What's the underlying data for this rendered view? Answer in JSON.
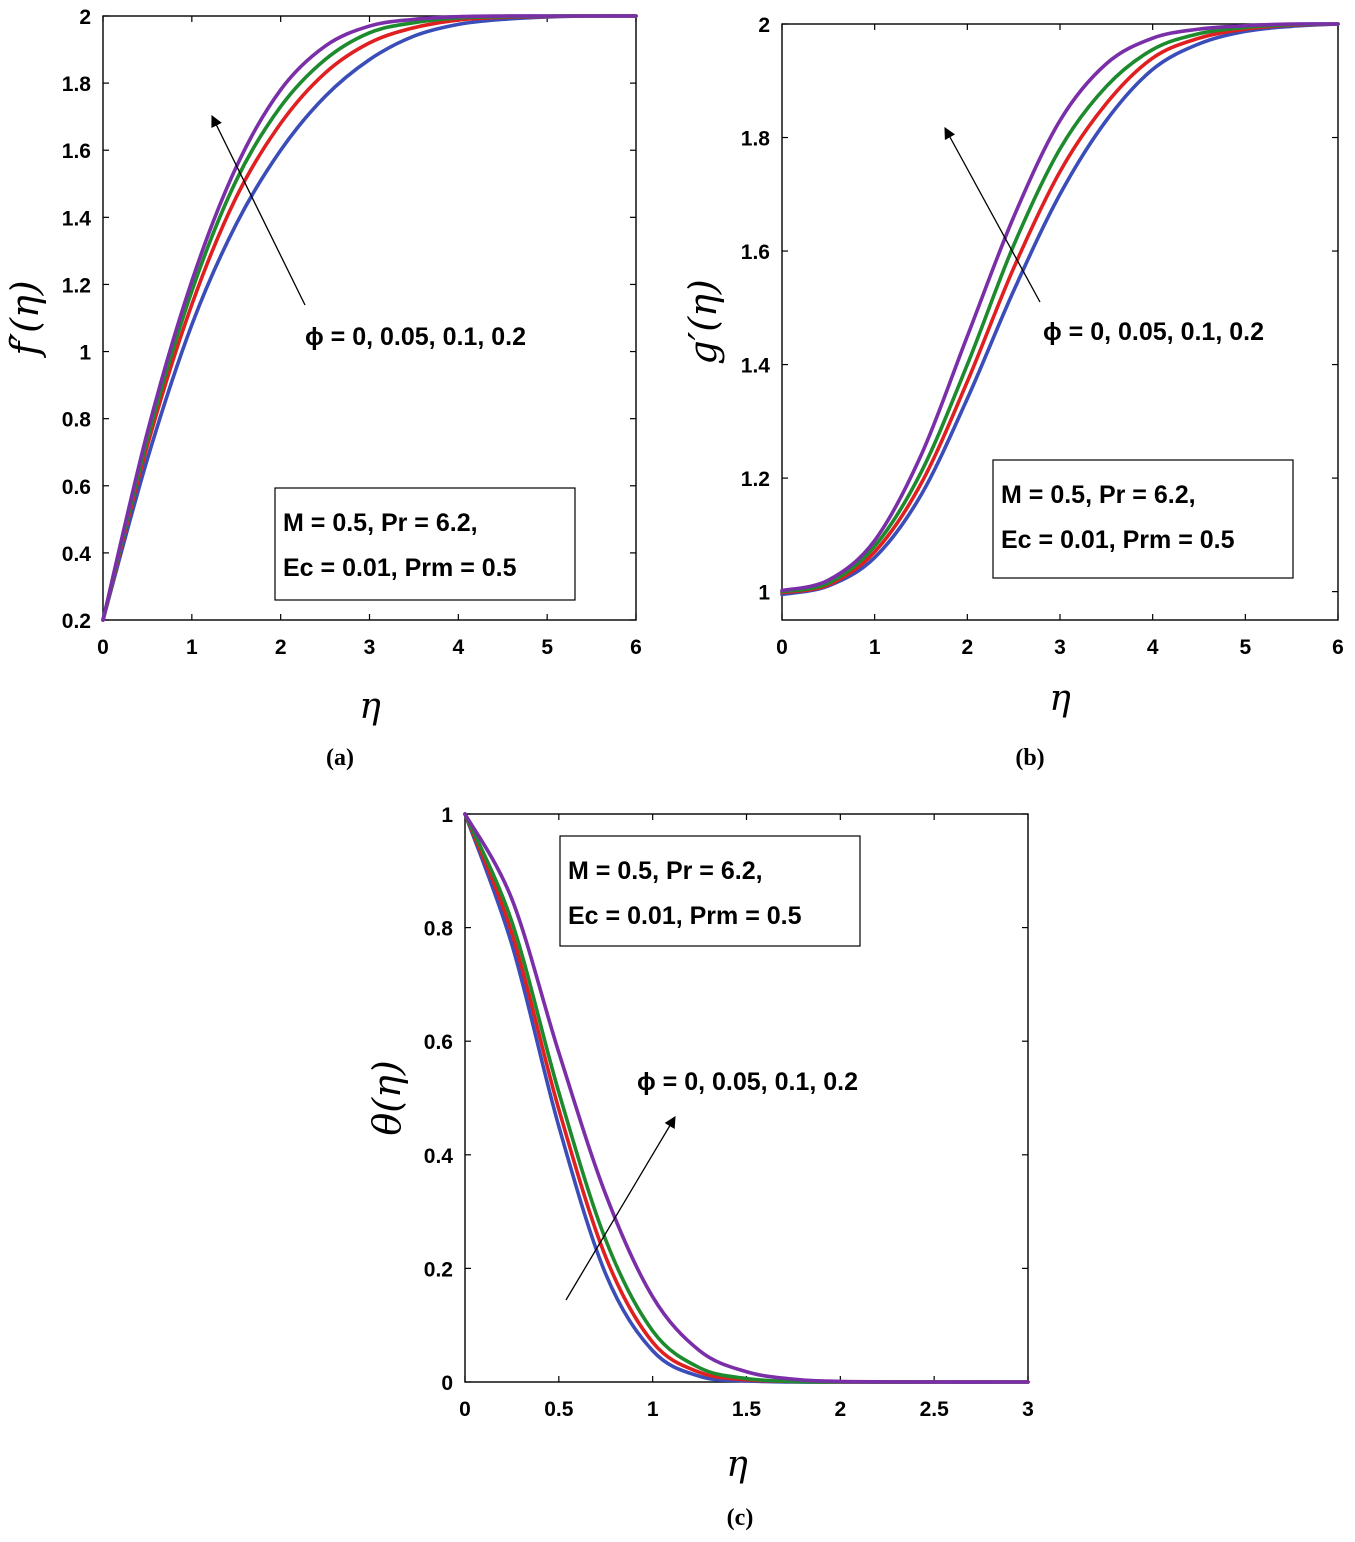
{
  "chart_data": [
    {
      "type": "line",
      "panel": "a",
      "caption": "(a)",
      "ylabel": "f′(η)",
      "xlabel": "η",
      "xlim": [
        0,
        6
      ],
      "ylim": [
        0.2,
        2
      ],
      "xticks": [
        "0",
        "1",
        "2",
        "3",
        "4",
        "5",
        "6"
      ],
      "yticks": [
        "0.2",
        "0.4",
        "0.6",
        "0.8",
        "1",
        "1.2",
        "1.4",
        "1.6",
        "1.8",
        "2"
      ],
      "annotation": "ϕ = 0, 0.05, 0.1, 0.2",
      "params_line1": "M = 0.5, Pr = 6.2,",
      "params_line2": "Ec = 0.01, Prm = 0.5",
      "series": [
        {
          "name": "ϕ = 0",
          "color": "#3a4db8",
          "x": [
            0,
            0.5,
            1,
            1.5,
            2,
            2.5,
            3,
            3.5,
            4,
            4.5,
            5,
            5.5,
            6
          ],
          "values": [
            0.2,
            0.68,
            1.08,
            1.38,
            1.6,
            1.76,
            1.87,
            1.94,
            1.975,
            1.99,
            1.997,
            2.0,
            2.0
          ]
        },
        {
          "name": "ϕ = 0.05",
          "color": "#e02020",
          "x": [
            0,
            0.5,
            1,
            1.5,
            2,
            2.5,
            3,
            3.5,
            4,
            4.5,
            5,
            5.5,
            6
          ],
          "values": [
            0.2,
            0.72,
            1.14,
            1.46,
            1.68,
            1.83,
            1.92,
            1.965,
            1.988,
            1.996,
            1.999,
            2.0,
            2.0
          ]
        },
        {
          "name": "ϕ = 0.1",
          "color": "#1e8a2e",
          "x": [
            0,
            0.5,
            1,
            1.5,
            2,
            2.5,
            3,
            3.5,
            4,
            4.5,
            5,
            5.5,
            6
          ],
          "values": [
            0.2,
            0.74,
            1.18,
            1.51,
            1.73,
            1.87,
            1.95,
            1.98,
            1.994,
            1.998,
            2.0,
            2.0,
            2.0
          ]
        },
        {
          "name": "ϕ = 0.2",
          "color": "#7a2fa8",
          "x": [
            0,
            0.5,
            1,
            1.5,
            2,
            2.5,
            3,
            3.5,
            4,
            4.5,
            5,
            5.5,
            6
          ],
          "values": [
            0.2,
            0.76,
            1.21,
            1.55,
            1.78,
            1.91,
            1.97,
            1.99,
            1.998,
            2.0,
            2.0,
            2.0,
            2.0
          ]
        }
      ]
    },
    {
      "type": "line",
      "panel": "b",
      "caption": "(b)",
      "ylabel": "g′(η)",
      "xlabel": "η",
      "xlim": [
        0,
        6
      ],
      "ylim": [
        0.95,
        2
      ],
      "xticks": [
        "0",
        "1",
        "2",
        "3",
        "4",
        "5",
        "6"
      ],
      "yticks": [
        "1",
        "1.2",
        "1.4",
        "1.6",
        "1.8",
        "2"
      ],
      "annotation": "ϕ = 0, 0.05, 0.1, 0.2",
      "params_line1": "M = 0.5, Pr = 6.2,",
      "params_line2": "Ec = 0.01, Prm = 0.5",
      "series": [
        {
          "name": "ϕ = 0",
          "color": "#3a4db8",
          "x": [
            0,
            0.5,
            1,
            1.5,
            2,
            2.5,
            3,
            3.5,
            4,
            4.5,
            5,
            5.5,
            6
          ],
          "values": [
            0.995,
            1.01,
            1.06,
            1.17,
            1.34,
            1.53,
            1.7,
            1.83,
            1.92,
            1.965,
            1.987,
            1.996,
            2.0
          ]
        },
        {
          "name": "ϕ = 0.05",
          "color": "#e02020",
          "x": [
            0,
            0.5,
            1,
            1.5,
            2,
            2.5,
            3,
            3.5,
            4,
            4.5,
            5,
            5.5,
            6
          ],
          "values": [
            0.998,
            1.012,
            1.07,
            1.19,
            1.37,
            1.57,
            1.74,
            1.86,
            1.94,
            1.975,
            1.991,
            1.998,
            2.0
          ]
        },
        {
          "name": "ϕ = 0.1",
          "color": "#1e8a2e",
          "x": [
            0,
            0.5,
            1,
            1.5,
            2,
            2.5,
            3,
            3.5,
            4,
            4.5,
            5,
            5.5,
            6
          ],
          "values": [
            1.0,
            1.015,
            1.08,
            1.21,
            1.4,
            1.61,
            1.78,
            1.89,
            1.955,
            1.983,
            1.994,
            1.999,
            2.0
          ]
        },
        {
          "name": "ϕ = 0.2",
          "color": "#7a2fa8",
          "x": [
            0,
            0.5,
            1,
            1.5,
            2,
            2.5,
            3,
            3.5,
            4,
            4.5,
            5,
            5.5,
            6
          ],
          "values": [
            1.002,
            1.02,
            1.09,
            1.24,
            1.45,
            1.66,
            1.83,
            1.93,
            1.975,
            1.991,
            1.997,
            2.0,
            2.0
          ]
        }
      ]
    },
    {
      "type": "line",
      "panel": "c",
      "caption": "(c)",
      "ylabel": "θ(η)",
      "xlabel": "η",
      "xlim": [
        0,
        3
      ],
      "ylim": [
        0,
        1
      ],
      "xticks": [
        "0",
        "0.5",
        "1",
        "1.5",
        "2",
        "2.5",
        "3"
      ],
      "yticks": [
        "0",
        "0.2",
        "0.4",
        "0.6",
        "0.8",
        "1"
      ],
      "annotation": "ϕ = 0, 0.05, 0.1, 0.2",
      "params_line1": "M = 0.5, Pr = 6.2,",
      "params_line2": "Ec = 0.01, Prm = 0.5",
      "series": [
        {
          "name": "ϕ = 0",
          "color": "#3a4db8",
          "x": [
            0,
            0.25,
            0.5,
            0.75,
            1,
            1.25,
            1.5,
            1.75,
            2,
            2.5,
            3
          ],
          "values": [
            1.0,
            0.77,
            0.45,
            0.19,
            0.055,
            0.01,
            0.002,
            0.0,
            0.0,
            0.0,
            0.0
          ]
        },
        {
          "name": "ϕ = 0.05",
          "color": "#e02020",
          "x": [
            0,
            0.25,
            0.5,
            0.75,
            1,
            1.25,
            1.5,
            1.75,
            2,
            2.5,
            3
          ],
          "values": [
            1.0,
            0.79,
            0.48,
            0.22,
            0.07,
            0.017,
            0.004,
            0.001,
            0.0,
            0.0,
            0.0
          ]
        },
        {
          "name": "ϕ = 0.1",
          "color": "#1e8a2e",
          "x": [
            0,
            0.25,
            0.5,
            0.75,
            1,
            1.25,
            1.5,
            1.75,
            2,
            2.5,
            3
          ],
          "values": [
            1.0,
            0.81,
            0.51,
            0.25,
            0.09,
            0.025,
            0.006,
            0.001,
            0.0,
            0.0,
            0.0
          ]
        },
        {
          "name": "ϕ = 0.2",
          "color": "#7a2fa8",
          "x": [
            0,
            0.25,
            0.5,
            0.75,
            1,
            1.25,
            1.5,
            1.75,
            2,
            2.5,
            3
          ],
          "values": [
            1.0,
            0.85,
            0.58,
            0.33,
            0.15,
            0.055,
            0.018,
            0.005,
            0.001,
            0.0,
            0.0
          ]
        }
      ]
    }
  ]
}
